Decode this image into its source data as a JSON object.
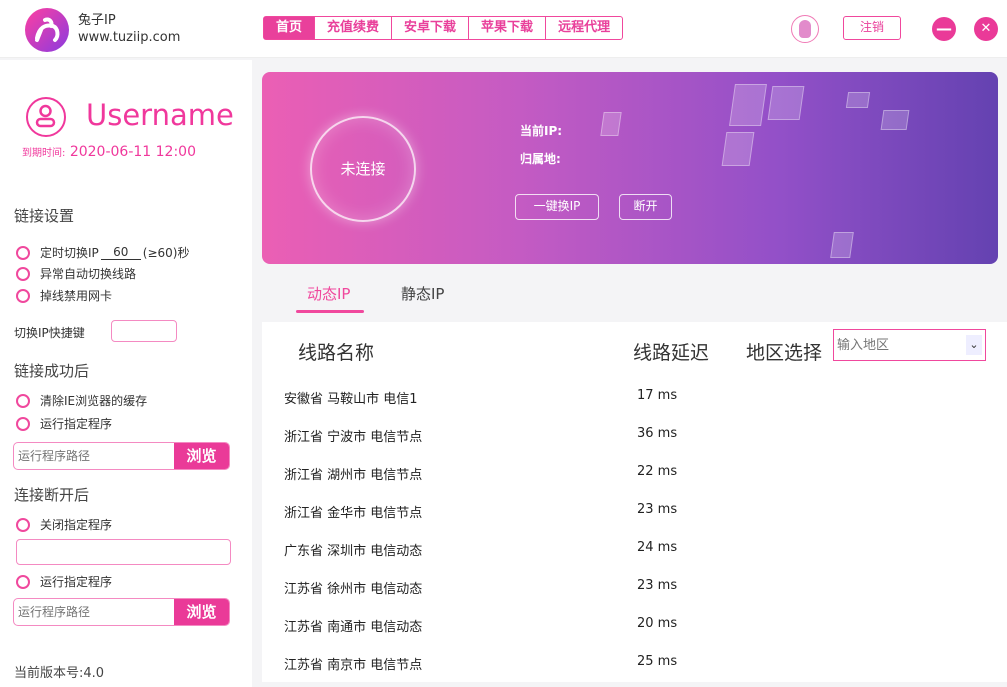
{
  "header": {
    "brand_name": "兔子IP",
    "brand_url": "www.tuziip.com",
    "nav": [
      "首页",
      "充值续费",
      "安卓下载",
      "苹果下载",
      "远程代理"
    ],
    "logout": "注销",
    "minimize": "—",
    "close": "✕",
    "accent": "#ea3a98"
  },
  "sidebar": {
    "username": "Username",
    "expire_label": "到期时间:",
    "expire_value": "2020-06-11 12:00",
    "link_settings": "链接设置",
    "timer_prefix": "定时切换IP",
    "timer_value": "60",
    "timer_suffix": "(≥60)秒",
    "auto_switch": "异常自动切换线路",
    "disable_nic": "掉线禁用网卡",
    "hotkey_label": "切换IP快捷键",
    "after_connect": "链接成功后",
    "clear_cache": "清除IE浏览器的缓存",
    "run_program": "运行指定程序",
    "path_placeholder": "运行程序路径",
    "browse": "浏览",
    "after_disconnect": "连接断开后",
    "close_program": "关闭指定程序",
    "run_program2": "运行指定程序",
    "version": "当前版本号:4.0"
  },
  "banner": {
    "status": "未连接",
    "current_ip": "当前IP:",
    "location": "归属地:",
    "switch_ip": "一键换IP",
    "disconnect": "断开"
  },
  "tabs": [
    "动态IP",
    "静态IP"
  ],
  "table": {
    "col_name": "线路名称",
    "col_latency": "线路延迟",
    "region_label": "地区选择",
    "region_placeholder": "输入地区",
    "rows": [
      {
        "name": "安徽省 马鞍山市 电信1",
        "latency": "17 ms"
      },
      {
        "name": "浙江省 宁波市 电信节点",
        "latency": "36 ms"
      },
      {
        "name": "浙江省 湖州市 电信节点",
        "latency": "22 ms"
      },
      {
        "name": "浙江省 金华市 电信节点",
        "latency": "23 ms"
      },
      {
        "name": "广东省 深圳市 电信动态",
        "latency": "24 ms"
      },
      {
        "name": "江苏省 徐州市 电信动态",
        "latency": "23 ms"
      },
      {
        "name": "江苏省 南通市 电信动态",
        "latency": "20 ms"
      },
      {
        "name": "江苏省 南京市 电信节点",
        "latency": "25 ms"
      }
    ]
  }
}
